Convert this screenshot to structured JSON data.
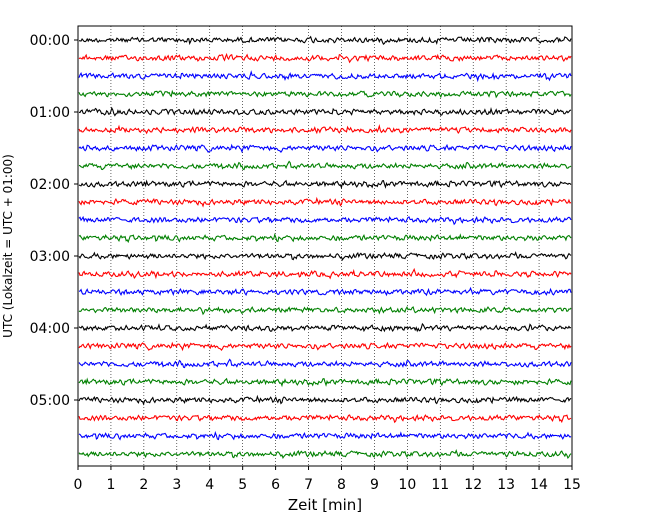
{
  "chart_data": {
    "type": "line",
    "title": "",
    "xlabel": "Zeit  [min]",
    "ylabel": "UTC (Lokalzeit = UTC + 01:00)",
    "xlim": [
      0,
      15
    ],
    "x_ticks": [
      "0",
      "1",
      "2",
      "3",
      "4",
      "5",
      "6",
      "7",
      "8",
      "9",
      "10",
      "11",
      "12",
      "13",
      "14",
      "15"
    ],
    "y_ticks": [
      {
        "label": "00:00",
        "trace_index": 0
      },
      {
        "label": "01:00",
        "trace_index": 4
      },
      {
        "label": "02:00",
        "trace_index": 8
      },
      {
        "label": "03:00",
        "trace_index": 12
      },
      {
        "label": "04:00",
        "trace_index": 16
      },
      {
        "label": "05:00",
        "trace_index": 20
      }
    ],
    "trace_interval_minutes": 15,
    "trace_count": 24,
    "trace_colors": [
      "#000000",
      "#ff0000",
      "#0000ff",
      "#008000"
    ],
    "vertical_grid": true,
    "grid_style": "dotted",
    "legend": "none"
  }
}
